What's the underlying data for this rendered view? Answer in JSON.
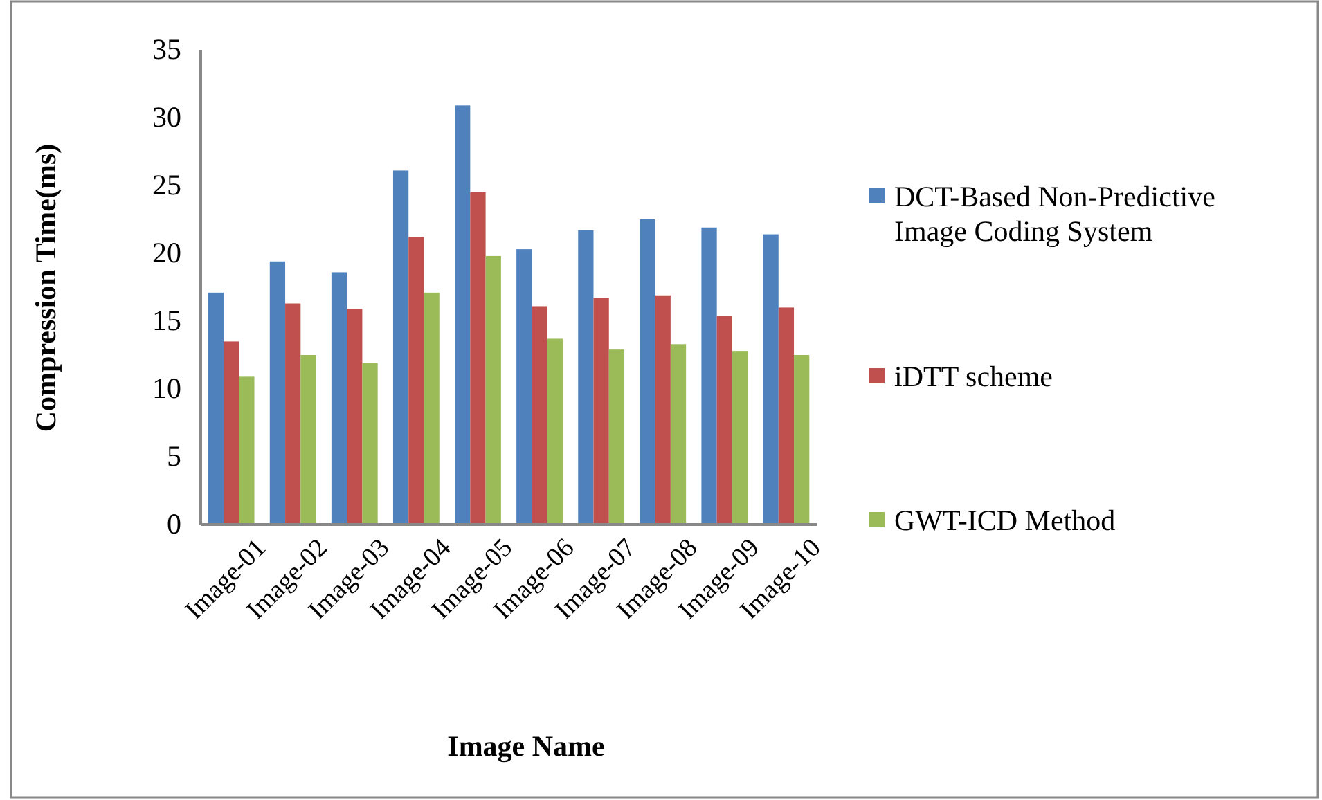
{
  "chart_data": {
    "type": "bar",
    "xlabel": "Image Name",
    "ylabel": "Compression Time(ms)",
    "categories": [
      "Image-01",
      "Image-02",
      "Image-03",
      "Image-04",
      "Image-05",
      "Image-06",
      "Image-07",
      "Image-08",
      "Image-09",
      "Image-10"
    ],
    "series": [
      {
        "name": "DCT-Based Non-Predictive Image Coding System",
        "color": "#4f81bd",
        "values": [
          17.1,
          19.4,
          18.6,
          26.1,
          30.9,
          20.3,
          21.7,
          22.5,
          21.9,
          21.4
        ]
      },
      {
        "name": "iDTT scheme",
        "color": "#c0504d",
        "values": [
          13.5,
          16.3,
          15.9,
          21.2,
          24.5,
          16.1,
          16.7,
          16.9,
          15.4,
          16.0
        ]
      },
      {
        "name": "GWT-ICD Method",
        "color": "#9bbb59",
        "values": [
          10.9,
          12.5,
          11.9,
          17.1,
          19.8,
          13.7,
          12.9,
          13.3,
          12.8,
          12.5
        ]
      }
    ],
    "ylim": [
      0,
      35
    ],
    "yticks": [
      0,
      5,
      10,
      15,
      20,
      25,
      30,
      35
    ],
    "grid": false,
    "legend": "right"
  }
}
